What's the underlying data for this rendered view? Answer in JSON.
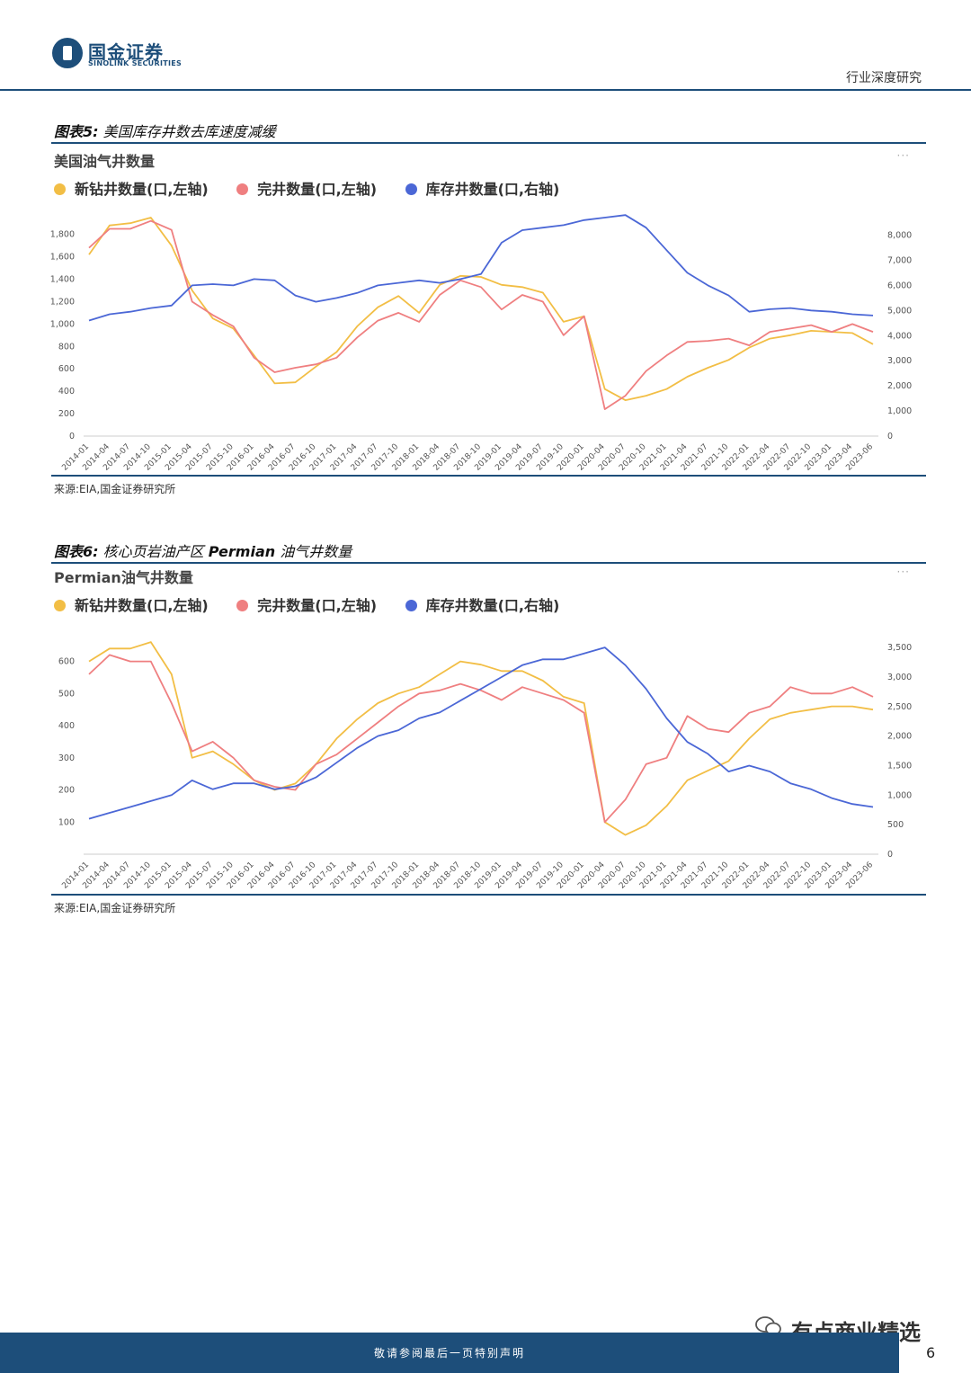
{
  "header": {
    "brand_cn": "国金证券",
    "brand_en": "SINOLINK SECURITIES",
    "doc_type": "行业深度研究"
  },
  "figure5": {
    "label": "图表5:",
    "title": "美国库存井数去库速度减缓",
    "panel_title": "美国油气井数量",
    "more": "···",
    "source": "来源:EIA,国金证券研究所"
  },
  "figure6": {
    "label": "图表6:",
    "title_pre": "核心页岩油产区",
    "title_em": "Permian",
    "title_post": "油气井数量",
    "panel_title": "Permian油气井数量",
    "more": "···",
    "source": "来源:EIA,国金证券研究所"
  },
  "footer": {
    "text": "敬请参阅最后一页特别声明",
    "page": "6",
    "wechat": "有点商业精选"
  },
  "colors": {
    "drilled": "#f2be45",
    "completed": "#ef7f80",
    "duc": "#4b67d6",
    "brand": "#1d4e7a"
  },
  "chart_data": [
    {
      "type": "line",
      "title": "美国油气井数量",
      "x": [
        "2014-01",
        "2014-04",
        "2014-07",
        "2014-10",
        "2015-01",
        "2015-04",
        "2015-07",
        "2015-10",
        "2016-01",
        "2016-04",
        "2016-07",
        "2016-10",
        "2017-01",
        "2017-04",
        "2017-07",
        "2017-10",
        "2018-01",
        "2018-04",
        "2018-07",
        "2018-10",
        "2019-01",
        "2019-04",
        "2019-07",
        "2019-10",
        "2020-01",
        "2020-04",
        "2020-07",
        "2020-10",
        "2021-01",
        "2021-04",
        "2021-07",
        "2021-10",
        "2022-01",
        "2022-04",
        "2022-07",
        "2022-10",
        "2023-01",
        "2023-04",
        "2023-06"
      ],
      "left_yaxis": {
        "ticks": [
          "0",
          "200",
          "400",
          "600",
          "800",
          "1,000",
          "1,200",
          "1,400",
          "1,600",
          "1,800"
        ],
        "range": [
          0,
          1950
        ]
      },
      "right_yaxis": {
        "ticks": [
          "0",
          "1,000",
          "2,000",
          "3,000",
          "4,000",
          "5,000",
          "6,000",
          "7,000",
          "8,000"
        ],
        "range": [
          0,
          8700
        ]
      },
      "series": [
        {
          "name": "新钻井数量(口,左轴)",
          "axis": "left",
          "values": [
            1620,
            1880,
            1900,
            1950,
            1700,
            1300,
            1050,
            960,
            720,
            470,
            480,
            620,
            750,
            980,
            1150,
            1250,
            1100,
            1350,
            1430,
            1420,
            1350,
            1330,
            1280,
            1020,
            1070,
            420,
            320,
            360,
            420,
            530,
            610,
            680,
            790,
            870,
            900,
            940,
            930,
            920,
            820
          ]
        },
        {
          "name": "完井数量(口,左轴)",
          "axis": "left",
          "values": [
            1680,
            1850,
            1850,
            1920,
            1840,
            1200,
            1080,
            980,
            700,
            570,
            610,
            640,
            700,
            880,
            1030,
            1100,
            1020,
            1260,
            1390,
            1330,
            1130,
            1260,
            1200,
            900,
            1070,
            240,
            360,
            580,
            720,
            840,
            850,
            870,
            810,
            930,
            960,
            990,
            930,
            1000,
            930
          ]
        },
        {
          "name": "库存井数量(口,右轴)",
          "axis": "right",
          "values": [
            4600,
            4850,
            4950,
            5100,
            5200,
            6000,
            6050,
            6000,
            6250,
            6200,
            5600,
            5350,
            5500,
            5700,
            6000,
            6100,
            6200,
            6100,
            6250,
            6450,
            7700,
            8200,
            8300,
            8400,
            8600,
            8700,
            8800,
            8300,
            7400,
            6500,
            6000,
            5600,
            4950,
            5050,
            5100,
            5000,
            4950,
            4850,
            4800
          ]
        }
      ]
    },
    {
      "type": "line",
      "title": "Permian油气井数量",
      "x": [
        "2014-01",
        "2014-04",
        "2014-07",
        "2014-10",
        "2015-01",
        "2015-04",
        "2015-07",
        "2015-10",
        "2016-01",
        "2016-04",
        "2016-07",
        "2016-10",
        "2017-01",
        "2017-04",
        "2017-07",
        "2017-10",
        "2018-01",
        "2018-04",
        "2018-07",
        "2018-10",
        "2019-01",
        "2019-04",
        "2019-07",
        "2019-10",
        "2020-01",
        "2020-04",
        "2020-07",
        "2020-10",
        "2021-01",
        "2021-04",
        "2021-07",
        "2021-10",
        "2022-01",
        "2022-04",
        "2022-07",
        "2022-10",
        "2023-01",
        "2023-04",
        "2023-06"
      ],
      "left_yaxis": {
        "ticks": [
          "100",
          "200",
          "300",
          "400",
          "500",
          "600"
        ],
        "range": [
          0,
          680
        ]
      },
      "right_yaxis": {
        "ticks": [
          "0",
          "500",
          "1,000",
          "1,500",
          "2,000",
          "2,500",
          "3,000",
          "3,500"
        ],
        "range": [
          0,
          3700
        ]
      },
      "series": [
        {
          "name": "新钻井数量(口,左轴)",
          "axis": "left",
          "values": [
            600,
            640,
            640,
            660,
            560,
            300,
            320,
            280,
            230,
            200,
            220,
            280,
            360,
            420,
            470,
            500,
            520,
            560,
            600,
            590,
            570,
            570,
            540,
            490,
            470,
            100,
            60,
            90,
            150,
            230,
            260,
            290,
            360,
            420,
            440,
            450,
            460,
            460,
            450
          ]
        },
        {
          "name": "完井数量(口,左轴)",
          "axis": "left",
          "values": [
            560,
            620,
            600,
            600,
            470,
            320,
            350,
            300,
            230,
            210,
            200,
            280,
            310,
            360,
            410,
            460,
            500,
            510,
            530,
            510,
            480,
            520,
            500,
            480,
            440,
            100,
            170,
            280,
            300,
            430,
            390,
            380,
            440,
            460,
            520,
            500,
            500,
            520,
            490
          ]
        },
        {
          "name": "库存井数量(口,右轴)",
          "axis": "right",
          "values": [
            600,
            700,
            800,
            900,
            1000,
            1250,
            1100,
            1200,
            1200,
            1100,
            1150,
            1300,
            1550,
            1800,
            2000,
            2100,
            2300,
            2400,
            2600,
            2800,
            3000,
            3200,
            3300,
            3300,
            3400,
            3500,
            3200,
            2800,
            2300,
            1900,
            1700,
            1400,
            1500,
            1400,
            1200,
            1100,
            950,
            850,
            800
          ]
        }
      ]
    }
  ]
}
